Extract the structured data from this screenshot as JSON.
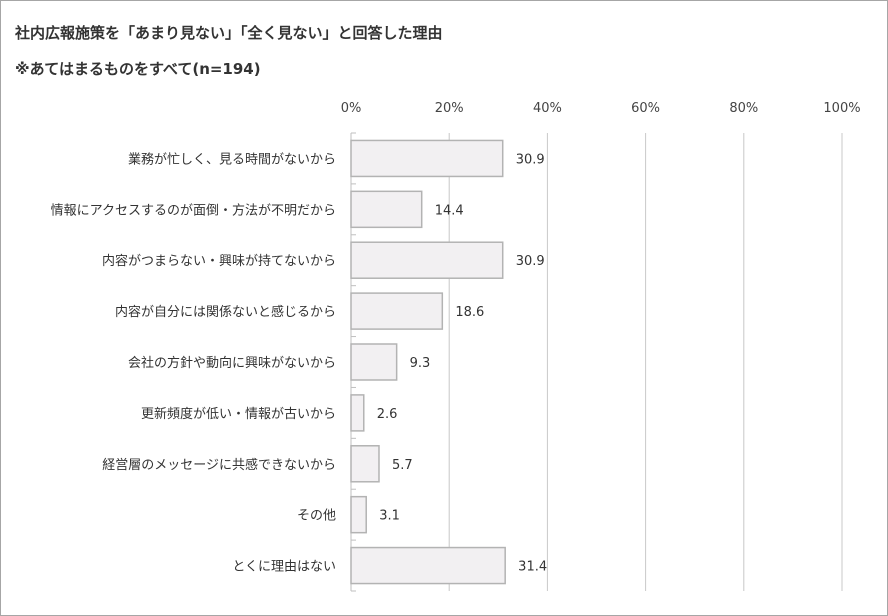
{
  "chart_data": {
    "type": "bar",
    "orientation": "horizontal",
    "title": "社内広報施策を「あまり見ない」「全く見ない」と回答した理由",
    "subtitle": "※あてはまるものをすべて(n=194)",
    "categories": [
      "業務が忙しく、見る時間がないから",
      "情報にアクセスするのが面倒・方法が不明だから",
      "内容がつまらない・興味が持てないから",
      "内容が自分には関係ないと感じるから",
      "会社の方針や動向に興味がないから",
      "更新頻度が低い・情報が古いから",
      "経営層のメッセージに共感できないから",
      "その他",
      "とくに理由はない"
    ],
    "values": [
      30.9,
      14.4,
      30.9,
      18.6,
      9.3,
      2.6,
      5.7,
      3.1,
      31.4
    ],
    "value_labels": [
      "30.9",
      "14.4",
      "30.9",
      "18.6",
      "9.3",
      "2.6",
      "5.7",
      "3.1",
      "31.4"
    ],
    "xlim": [
      0,
      100
    ],
    "xticks": [
      0,
      20,
      40,
      60,
      80,
      100
    ],
    "xtick_labels": [
      "0%",
      "20%",
      "40%",
      "60%",
      "80%",
      "100%"
    ],
    "xaxis_position": "top",
    "grid": true,
    "legend": "none",
    "colors": {
      "bar_fill": "#f2f0f2",
      "bar_stroke": "#b3b3b3",
      "grid": "#c8c8c8",
      "axis": "#bfbfbf"
    }
  }
}
